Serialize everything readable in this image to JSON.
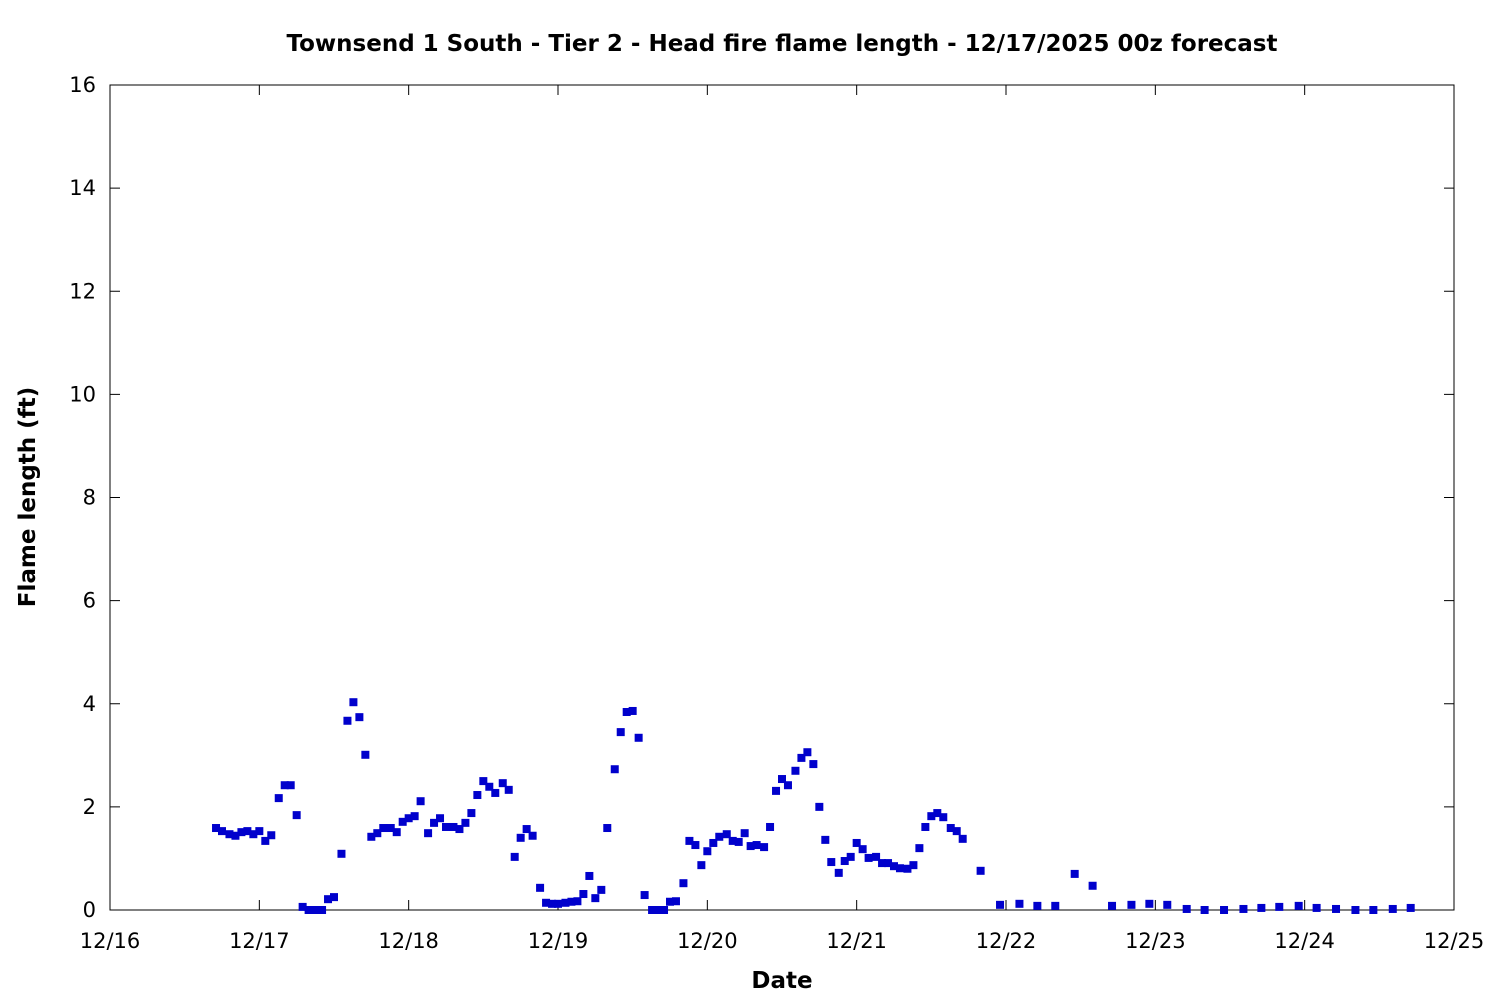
{
  "chart_data": {
    "type": "scatter",
    "title": "Townsend 1 South - Tier 2 - Head fire flame length - 12/17/2025 00z forecast",
    "x_label": "Date",
    "y_label": "Flame length (ft)",
    "color": "#0000cc",
    "xlim": [
      16,
      25
    ],
    "xticks": [
      {
        "value": 16,
        "label": "12/16"
      },
      {
        "value": 17,
        "label": "12/17"
      },
      {
        "value": 18,
        "label": "12/18"
      },
      {
        "value": 19,
        "label": "12/19"
      },
      {
        "value": 20,
        "label": "12/20"
      },
      {
        "value": 21,
        "label": "12/21"
      },
      {
        "value": 22,
        "label": "12/22"
      },
      {
        "value": 23,
        "label": "12/23"
      },
      {
        "value": 24,
        "label": "12/24"
      },
      {
        "value": 25,
        "label": "12/25"
      }
    ],
    "ylim": [
      0,
      16
    ],
    "yticks": [
      0,
      2,
      4,
      6,
      8,
      10,
      12,
      14,
      16
    ],
    "x": [
      16.71,
      16.75,
      16.8,
      16.84,
      16.88,
      16.92,
      16.96,
      17.0,
      17.04,
      17.08,
      17.13,
      17.17,
      17.21,
      17.25,
      17.29,
      17.33,
      17.38,
      17.42,
      17.46,
      17.5,
      17.55,
      17.59,
      17.63,
      17.67,
      17.71,
      17.75,
      17.79,
      17.83,
      17.88,
      17.92,
      17.96,
      18.0,
      18.04,
      18.08,
      18.13,
      18.17,
      18.21,
      18.25,
      18.3,
      18.34,
      18.38,
      18.42,
      18.46,
      18.5,
      18.54,
      18.58,
      18.63,
      18.67,
      18.71,
      18.75,
      18.79,
      18.83,
      18.88,
      18.92,
      18.96,
      19.0,
      19.05,
      19.09,
      19.13,
      19.17,
      19.21,
      19.25,
      19.29,
      19.33,
      19.38,
      19.42,
      19.46,
      19.5,
      19.54,
      19.58,
      19.63,
      19.67,
      19.71,
      19.75,
      19.79,
      19.84,
      19.88,
      19.92,
      19.96,
      20.0,
      20.04,
      20.08,
      20.13,
      20.17,
      20.21,
      20.25,
      20.29,
      20.33,
      20.38,
      20.42,
      20.46,
      20.5,
      20.54,
      20.59,
      20.63,
      20.67,
      20.71,
      20.75,
      20.79,
      20.83,
      20.88,
      20.92,
      20.96,
      21.0,
      21.04,
      21.08,
      21.13,
      21.17,
      21.21,
      21.25,
      21.29,
      21.34,
      21.38,
      21.42,
      21.46,
      21.5,
      21.54,
      21.58,
      21.63,
      21.67,
      21.71,
      21.83,
      21.96,
      22.09,
      22.21,
      22.33,
      22.46,
      22.58,
      22.71,
      22.84,
      22.96,
      23.08,
      23.21,
      23.33,
      23.46,
      23.59,
      23.71,
      23.83,
      23.96,
      24.08,
      24.21,
      24.34,
      24.46,
      24.59,
      24.71
    ],
    "values": [
      1.59,
      1.53,
      1.47,
      1.44,
      1.51,
      1.53,
      1.47,
      1.53,
      1.34,
      1.45,
      2.17,
      2.42,
      2.42,
      1.84,
      0.06,
      0,
      0,
      0,
      0.21,
      0.25,
      1.09,
      3.67,
      4.03,
      3.74,
      3.01,
      1.42,
      1.49,
      1.59,
      1.59,
      1.51,
      1.71,
      1.78,
      1.82,
      2.11,
      1.49,
      1.69,
      1.78,
      1.61,
      1.61,
      1.57,
      1.69,
      1.88,
      2.23,
      2.5,
      2.39,
      2.27,
      2.46,
      2.33,
      1.03,
      1.4,
      1.57,
      1.44,
      0.43,
      0.14,
      0.12,
      0.12,
      0.14,
      0.16,
      0.17,
      0.31,
      0.66,
      0.23,
      0.39,
      1.59,
      2.73,
      3.45,
      3.84,
      3.86,
      3.34,
      0.29,
      0,
      0,
      0,
      0.16,
      0.17,
      0.52,
      1.34,
      1.26,
      0.87,
      1.14,
      1.3,
      1.42,
      1.47,
      1.34,
      1.32,
      1.49,
      1.24,
      1.26,
      1.22,
      1.61,
      2.31,
      2.54,
      2.42,
      2.7,
      2.95,
      3.06,
      2.83,
      2.0,
      1.36,
      0.93,
      0.72,
      0.95,
      1.03,
      1.3,
      1.18,
      1.01,
      1.03,
      0.91,
      0.91,
      0.85,
      0.81,
      0.8,
      0.87,
      1.2,
      1.61,
      1.82,
      1.88,
      1.8,
      1.59,
      1.53,
      1.38,
      0.76,
      0.1,
      0.12,
      0.08,
      0.08,
      0.7,
      0.47,
      0.08,
      0.1,
      0.12,
      0.1,
      0.02,
      0,
      0,
      0.02,
      0.04,
      0.06,
      0.08,
      0.04,
      0.02,
      0,
      0,
      0.02,
      0.04
    ]
  }
}
